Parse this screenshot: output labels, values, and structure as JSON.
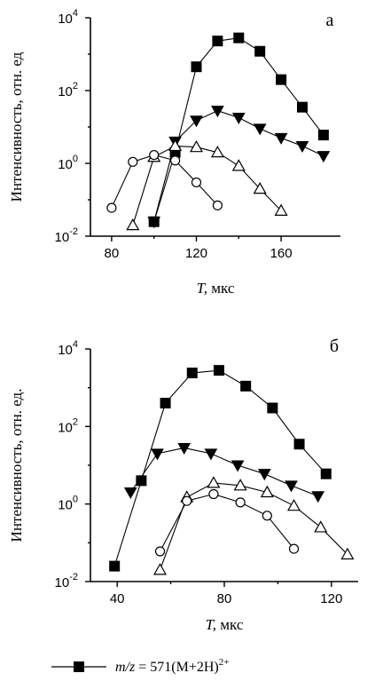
{
  "chart_data": [
    {
      "type": "line",
      "panel_label": "а",
      "xlabel_var": "T,",
      "xlabel_unit": "мкс",
      "ylabel": "Интенсивность, отн. ед",
      "yscale": "log",
      "xlim": [
        70,
        188
      ],
      "ylim": [
        0.01,
        10000
      ],
      "xticks": [
        "80",
        "120",
        "160"
      ],
      "xtick_values": [
        80,
        120,
        160
      ],
      "yticks_base": [
        "10",
        "10",
        "10",
        "10"
      ],
      "yticks_exp": [
        "-2",
        "0",
        "2",
        "4"
      ],
      "ytick_values": [
        0.01,
        1,
        100,
        10000
      ],
      "series": [
        {
          "marker": "square",
          "x": [
            100,
            110,
            120,
            130,
            140,
            150,
            160,
            170,
            180
          ],
          "y": [
            0.025,
            2,
            450,
            2300,
            2800,
            1200,
            200,
            35,
            6
          ]
        },
        {
          "marker": "tri-down",
          "x": [
            100,
            110,
            120,
            130,
            140,
            150,
            160,
            170,
            180
          ],
          "y": [
            0.025,
            4,
            15,
            28,
            18,
            9,
            5,
            3,
            1.6
          ]
        },
        {
          "marker": "tri-up-open",
          "x": [
            90,
            100,
            110,
            120,
            130,
            140,
            150,
            160
          ],
          "y": [
            0.02,
            1.5,
            3,
            2.8,
            2,
            0.85,
            0.2,
            0.05
          ]
        },
        {
          "marker": "circle-open",
          "x": [
            80,
            90,
            100,
            110,
            120,
            130
          ],
          "y": [
            0.06,
            1.1,
            1.7,
            1.2,
            0.3,
            0.07
          ]
        }
      ]
    },
    {
      "type": "line",
      "panel_label": "б",
      "xlabel_var": "T,",
      "xlabel_unit": "мкс",
      "ylabel": "Интенсивность, отн. ед.",
      "yscale": "log",
      "xlim": [
        30,
        130
      ],
      "ylim": [
        0.01,
        10000
      ],
      "xticks": [
        "40",
        "80",
        "120"
      ],
      "xtick_values": [
        40,
        80,
        120
      ],
      "yticks_base": [
        "10",
        "10",
        "10",
        "10"
      ],
      "yticks_exp": [
        "-2",
        "0",
        "2",
        "4"
      ],
      "ytick_values": [
        0.01,
        1,
        100,
        10000
      ],
      "series": [
        {
          "marker": "square",
          "x": [
            39,
            49,
            58,
            68,
            78,
            88,
            98,
            108,
            118
          ],
          "y": [
            0.025,
            4,
            400,
            2400,
            2800,
            1100,
            300,
            35,
            6
          ]
        },
        {
          "marker": "tri-down",
          "x": [
            45,
            55,
            65,
            75,
            85,
            95,
            105,
            115
          ],
          "y": [
            2,
            20,
            28,
            20,
            10,
            6,
            3,
            1.6
          ]
        },
        {
          "marker": "tri-up-open",
          "x": [
            56,
            66,
            76,
            86,
            96,
            106,
            116,
            126
          ],
          "y": [
            0.02,
            1.5,
            3.5,
            3,
            2,
            0.9,
            0.25,
            0.05
          ]
        },
        {
          "marker": "circle-open",
          "x": [
            56,
            66,
            76,
            86,
            96,
            106
          ],
          "y": [
            0.06,
            1.2,
            1.8,
            1.1,
            0.5,
            0.07
          ]
        }
      ]
    }
  ],
  "legend": {
    "items": [
      {
        "marker": "square",
        "prefix": "m/z",
        "text": " = 571(M+2H)",
        "sup": "2+"
      }
    ]
  }
}
